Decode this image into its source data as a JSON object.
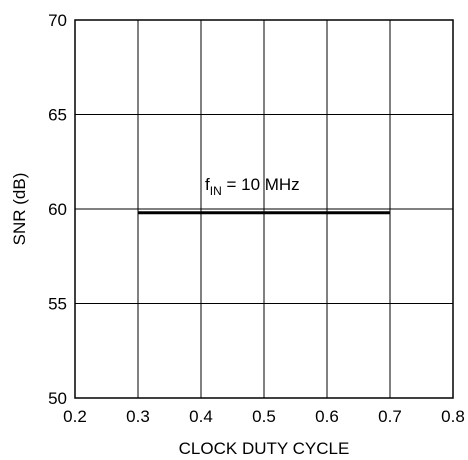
{
  "chart_data": {
    "type": "line",
    "xlabel": "CLOCK DUTY CYCLE",
    "ylabel": "SNR (dB)",
    "xlim": [
      0.2,
      0.8
    ],
    "ylim": [
      50,
      70
    ],
    "xticks": [
      "0.2",
      "0.3",
      "0.4",
      "0.5",
      "0.6",
      "0.7",
      "0.8"
    ],
    "yticks": [
      "50",
      "55",
      "60",
      "65",
      "70"
    ],
    "grid": true,
    "annotation": {
      "prefix": "f",
      "subscript": "IN",
      "suffix": " = 10 MHz"
    },
    "series": [
      {
        "x": [
          0.3,
          0.35,
          0.4,
          0.45,
          0.5,
          0.55,
          0.6,
          0.65,
          0.7
        ],
        "y": [
          59.8,
          59.8,
          59.8,
          59.8,
          59.8,
          59.8,
          59.8,
          59.8,
          59.8
        ]
      }
    ]
  }
}
